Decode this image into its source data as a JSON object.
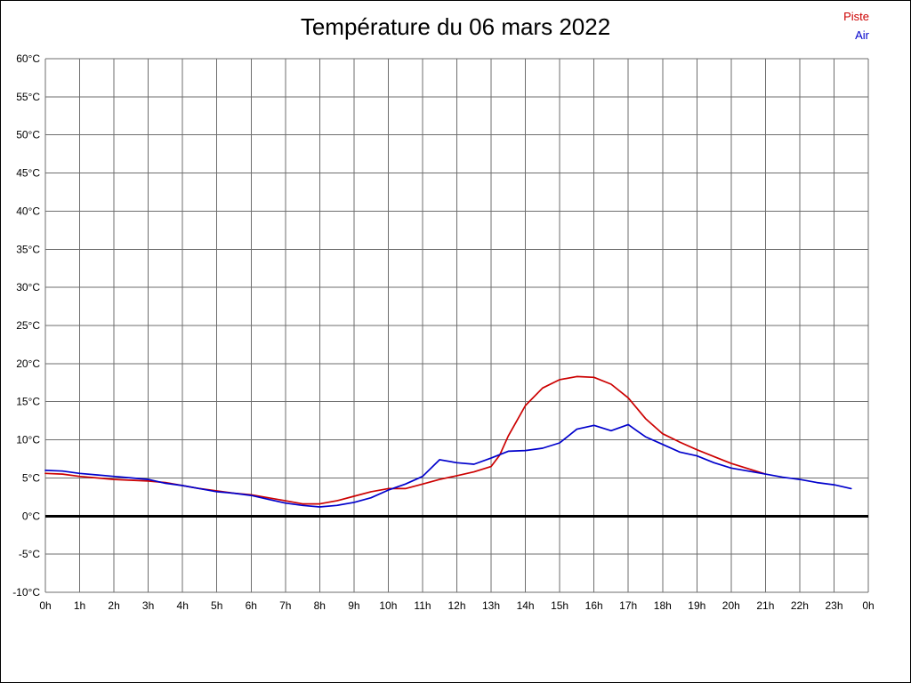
{
  "page": {
    "title": "Température du 06 mars 2022"
  },
  "chart_data": {
    "type": "line",
    "title": "Température du 06 mars 2022",
    "xlabel": "",
    "ylabel": "",
    "x_unit": "hours",
    "xlim": [
      0,
      24
    ],
    "ylim": [
      -10,
      60
    ],
    "y_tick_step": 5,
    "y_tick_suffix": "°C",
    "x_tick_labels": [
      "0h",
      "1h",
      "2h",
      "3h",
      "4h",
      "5h",
      "6h",
      "7h",
      "8h",
      "9h",
      "10h",
      "11h",
      "12h",
      "13h",
      "14h",
      "15h",
      "16h",
      "17h",
      "18h",
      "19h",
      "20h",
      "21h",
      "22h",
      "23h",
      "0h"
    ],
    "grid": true,
    "zero_line": true,
    "legend_position": "top-right",
    "series": [
      {
        "name": "Piste",
        "color": "#cc0000",
        "points": [
          [
            0,
            5.6
          ],
          [
            0.5,
            5.5
          ],
          [
            1,
            5.2
          ],
          [
            1.5,
            5.0
          ],
          [
            2,
            4.8
          ],
          [
            2.5,
            4.7
          ],
          [
            3,
            4.6
          ],
          [
            3.5,
            4.4
          ],
          [
            4,
            4.0
          ],
          [
            4.5,
            3.6
          ],
          [
            5,
            3.3
          ],
          [
            5.5,
            3.0
          ],
          [
            6,
            2.8
          ],
          [
            6.5,
            2.4
          ],
          [
            7,
            2.0
          ],
          [
            7.5,
            1.6
          ],
          [
            8,
            1.6
          ],
          [
            8.5,
            2.0
          ],
          [
            9,
            2.6
          ],
          [
            9.5,
            3.2
          ],
          [
            10,
            3.6
          ],
          [
            10.5,
            3.6
          ],
          [
            11,
            4.2
          ],
          [
            11.5,
            4.8
          ],
          [
            12,
            5.3
          ],
          [
            12.5,
            5.8
          ],
          [
            13,
            6.5
          ],
          [
            13.25,
            8.0
          ],
          [
            13.5,
            10.5
          ],
          [
            14,
            14.5
          ],
          [
            14.5,
            16.8
          ],
          [
            15,
            17.9
          ],
          [
            15.5,
            18.3
          ],
          [
            16,
            18.2
          ],
          [
            16.5,
            17.3
          ],
          [
            17,
            15.5
          ],
          [
            17.5,
            12.8
          ],
          [
            18,
            10.8
          ],
          [
            18.5,
            9.7
          ],
          [
            19,
            8.7
          ],
          [
            19.5,
            7.8
          ],
          [
            20,
            6.9
          ],
          [
            20.5,
            6.2
          ],
          [
            21,
            5.5
          ]
        ]
      },
      {
        "name": "Air",
        "color": "#0000cc",
        "points": [
          [
            0,
            6.0
          ],
          [
            0.5,
            5.9
          ],
          [
            1,
            5.6
          ],
          [
            1.5,
            5.4
          ],
          [
            2,
            5.2
          ],
          [
            2.5,
            5.0
          ],
          [
            3,
            4.8
          ],
          [
            3.5,
            4.3
          ],
          [
            4,
            4.0
          ],
          [
            4.5,
            3.6
          ],
          [
            5,
            3.2
          ],
          [
            5.5,
            3.0
          ],
          [
            6,
            2.7
          ],
          [
            6.5,
            2.2
          ],
          [
            7,
            1.7
          ],
          [
            7.5,
            1.4
          ],
          [
            8,
            1.2
          ],
          [
            8.5,
            1.4
          ],
          [
            9,
            1.8
          ],
          [
            9.5,
            2.4
          ],
          [
            10,
            3.4
          ],
          [
            10.5,
            4.2
          ],
          [
            11,
            5.2
          ],
          [
            11.5,
            7.4
          ],
          [
            12,
            7.0
          ],
          [
            12.5,
            6.8
          ],
          [
            13,
            7.6
          ],
          [
            13.5,
            8.5
          ],
          [
            14,
            8.6
          ],
          [
            14.5,
            8.9
          ],
          [
            15,
            9.6
          ],
          [
            15.5,
            11.4
          ],
          [
            16,
            11.9
          ],
          [
            16.5,
            11.2
          ],
          [
            17,
            12.0
          ],
          [
            17.25,
            11.2
          ],
          [
            17.5,
            10.4
          ],
          [
            18,
            9.4
          ],
          [
            18.5,
            8.4
          ],
          [
            19,
            7.9
          ],
          [
            19.5,
            7.0
          ],
          [
            20,
            6.3
          ],
          [
            20.5,
            5.9
          ],
          [
            21,
            5.5
          ],
          [
            21.5,
            5.1
          ],
          [
            22,
            4.8
          ],
          [
            22.5,
            4.4
          ],
          [
            23,
            4.1
          ],
          [
            23.5,
            3.6
          ]
        ]
      }
    ]
  }
}
